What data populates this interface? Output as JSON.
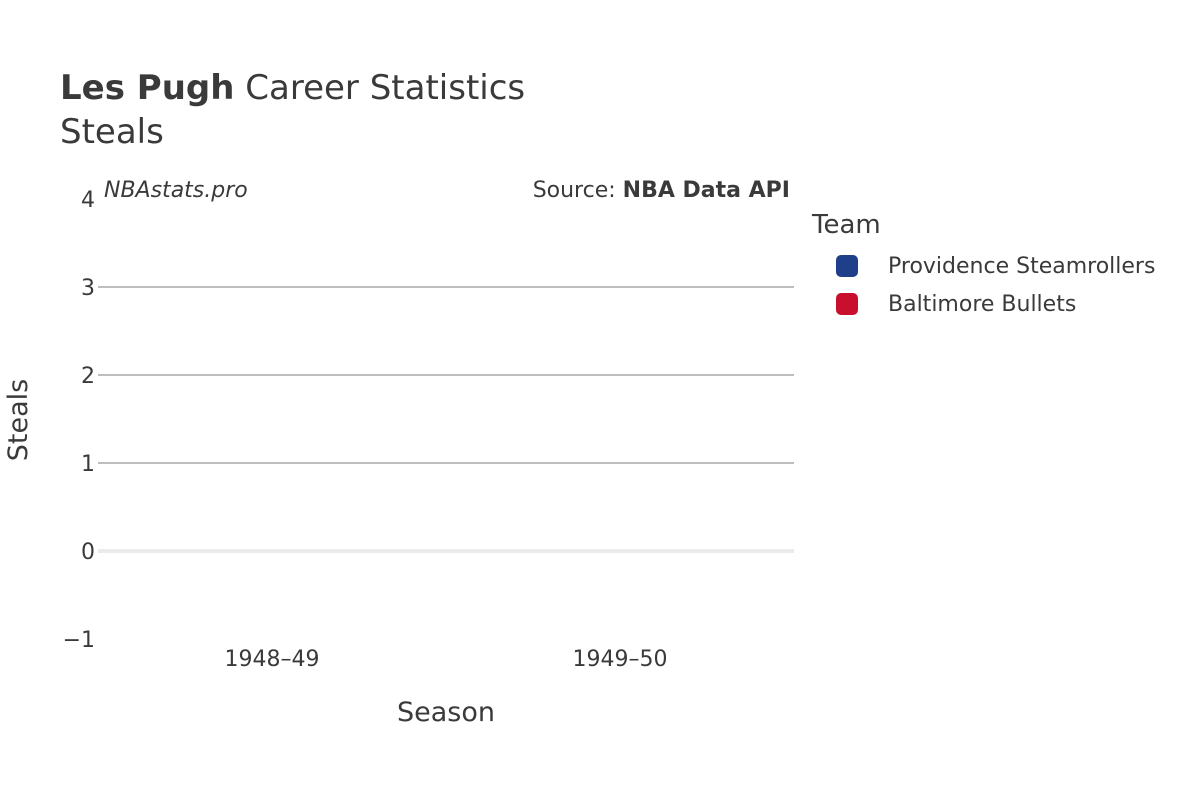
{
  "header": {
    "title_bold": "Les Pugh",
    "title_rest": " Career Statistics",
    "subtitle": "Steals"
  },
  "annotations": {
    "watermark": "NBAstats.pro",
    "source_prefix": "Source: ",
    "source_bold": "NBA Data API"
  },
  "legend": {
    "title": "Team",
    "items": [
      {
        "label": "Providence Steamrollers",
        "color": "#1f3f8a"
      },
      {
        "label": "Baltimore Bullets",
        "color": "#c8102e"
      }
    ]
  },
  "chart_data": {
    "type": "bar",
    "title": "Les Pugh Career Statistics",
    "subtitle": "Steals",
    "xlabel": "Season",
    "ylabel": "Steals",
    "categories": [
      "1948–49",
      "1949–50"
    ],
    "series": [
      {
        "name": "Providence Steamrollers",
        "color": "#1f3f8a",
        "values": [
          null,
          null
        ]
      },
      {
        "name": "Baltimore Bullets",
        "color": "#c8102e",
        "values": [
          null,
          null
        ]
      }
    ],
    "ylim": [
      -1,
      4
    ],
    "yticks": [
      -1,
      0,
      1,
      2,
      3,
      4
    ],
    "ytick_labels": [
      "−1",
      "0",
      "1",
      "2",
      "3",
      "4"
    ],
    "grid": true,
    "legend_position": "right"
  }
}
